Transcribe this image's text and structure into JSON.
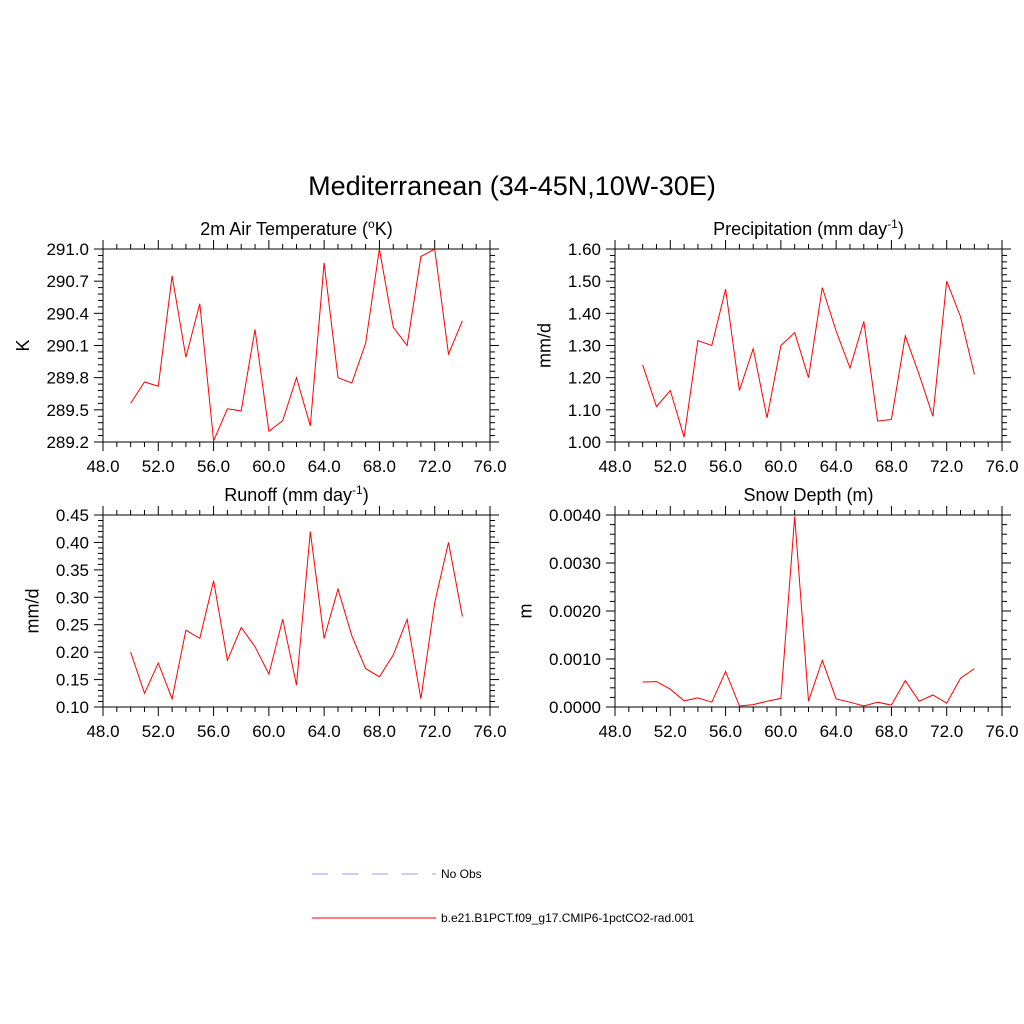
{
  "figure": {
    "title": "Mediterranean (34-45N,10W-30E)"
  },
  "legend": {
    "items": [
      {
        "label": "No Obs",
        "style": "dashed",
        "color": "#9999ee"
      },
      {
        "label": "b.e21.B1PCT.f09_g17.CMIP6-1pctCO2-rad.001",
        "style": "solid",
        "color": "#ff0000"
      }
    ]
  },
  "chart_data": [
    {
      "type": "line",
      "title": "2m Air Temperature (",
      "title_sup": "o",
      "title_suffix": "K)",
      "ylabel": "K",
      "xlim": [
        48,
        76
      ],
      "ylim": [
        289.2,
        291.0
      ],
      "x_ticks": [
        "48.0",
        "52.0",
        "56.0",
        "60.0",
        "64.0",
        "68.0",
        "72.0",
        "76.0"
      ],
      "y_ticks": [
        "289.2",
        "289.5",
        "289.8",
        "290.1",
        "290.4",
        "290.7",
        "291.0"
      ],
      "series": [
        {
          "color": "#ff0000",
          "x": [
            50,
            51,
            52,
            53,
            54,
            55,
            56,
            57,
            58,
            59,
            60,
            61,
            62,
            63,
            64,
            65,
            66,
            67,
            68,
            69,
            70,
            71,
            72,
            73,
            74
          ],
          "y": [
            289.56,
            289.76,
            289.72,
            290.75,
            289.99,
            290.49,
            289.21,
            289.51,
            289.49,
            290.25,
            289.3,
            289.4,
            289.8,
            289.35,
            290.87,
            289.8,
            289.75,
            290.12,
            291.0,
            290.27,
            290.1,
            290.93,
            291.0,
            290.02,
            290.33
          ]
        }
      ]
    },
    {
      "type": "line",
      "title": "Precipitation (mm day",
      "title_sup": "-1",
      "title_suffix": ")",
      "ylabel": "mm/d",
      "xlim": [
        48,
        76
      ],
      "ylim": [
        1.0,
        1.6
      ],
      "x_ticks": [
        "48.0",
        "52.0",
        "56.0",
        "60.0",
        "64.0",
        "68.0",
        "72.0",
        "76.0"
      ],
      "y_ticks": [
        "1.00",
        "1.10",
        "1.20",
        "1.30",
        "1.40",
        "1.50",
        "1.60"
      ],
      "series": [
        {
          "color": "#ff0000",
          "x": [
            50,
            51,
            52,
            53,
            54,
            55,
            56,
            57,
            58,
            59,
            60,
            61,
            62,
            63,
            64,
            65,
            66,
            67,
            68,
            69,
            70,
            71,
            72,
            73,
            74
          ],
          "y": [
            1.24,
            1.11,
            1.16,
            1.015,
            1.315,
            1.3,
            1.475,
            1.16,
            1.29,
            1.075,
            1.3,
            1.34,
            1.2,
            1.48,
            1.345,
            1.23,
            1.375,
            1.065,
            1.07,
            1.33,
            1.21,
            1.08,
            1.5,
            1.39,
            1.21
          ]
        }
      ]
    },
    {
      "type": "line",
      "title": "Runoff (mm day",
      "title_sup": "-1",
      "title_suffix": ")",
      "ylabel": "mm/d",
      "xlim": [
        48,
        76
      ],
      "ylim": [
        0.1,
        0.45
      ],
      "x_ticks": [
        "48.0",
        "52.0",
        "56.0",
        "60.0",
        "64.0",
        "68.0",
        "72.0",
        "76.0"
      ],
      "y_ticks": [
        "0.10",
        "0.15",
        "0.20",
        "0.25",
        "0.30",
        "0.35",
        "0.40",
        "0.45"
      ],
      "series": [
        {
          "color": "#ff0000",
          "x": [
            50,
            51,
            52,
            53,
            54,
            55,
            56,
            57,
            58,
            59,
            60,
            61,
            62,
            63,
            64,
            65,
            66,
            67,
            68,
            69,
            70,
            71,
            72,
            73,
            74
          ],
          "y": [
            0.2,
            0.125,
            0.18,
            0.115,
            0.24,
            0.225,
            0.33,
            0.185,
            0.245,
            0.21,
            0.16,
            0.26,
            0.14,
            0.42,
            0.225,
            0.315,
            0.23,
            0.17,
            0.155,
            0.195,
            0.26,
            0.115,
            0.29,
            0.4,
            0.265
          ]
        }
      ]
    },
    {
      "type": "line",
      "title": "Snow Depth (m)",
      "title_sup": "",
      "title_suffix": "",
      "ylabel": "m",
      "xlim": [
        48,
        76
      ],
      "ylim": [
        0.0,
        0.004
      ],
      "x_ticks": [
        "48.0",
        "52.0",
        "56.0",
        "60.0",
        "64.0",
        "68.0",
        "72.0",
        "76.0"
      ],
      "y_ticks": [
        "0.0000",
        "0.0010",
        "0.0020",
        "0.0030",
        "0.0040"
      ],
      "series": [
        {
          "color": "#ff0000",
          "x": [
            50,
            51,
            52,
            53,
            54,
            55,
            56,
            57,
            58,
            59,
            60,
            61,
            62,
            63,
            64,
            65,
            66,
            67,
            68,
            69,
            70,
            71,
            72,
            73,
            74
          ],
          "y": [
            0.00052,
            0.00053,
            0.00037,
            0.00013,
            0.00019,
            0.0001,
            0.00074,
            2e-05,
            5e-05,
            0.00012,
            0.00018,
            0.00397,
            0.00012,
            0.00097,
            0.00017,
            0.0001,
            2e-05,
            0.0001,
            4e-05,
            0.00055,
            0.00012,
            0.00025,
            8e-05,
            0.0006,
            0.0008
          ]
        }
      ]
    }
  ]
}
